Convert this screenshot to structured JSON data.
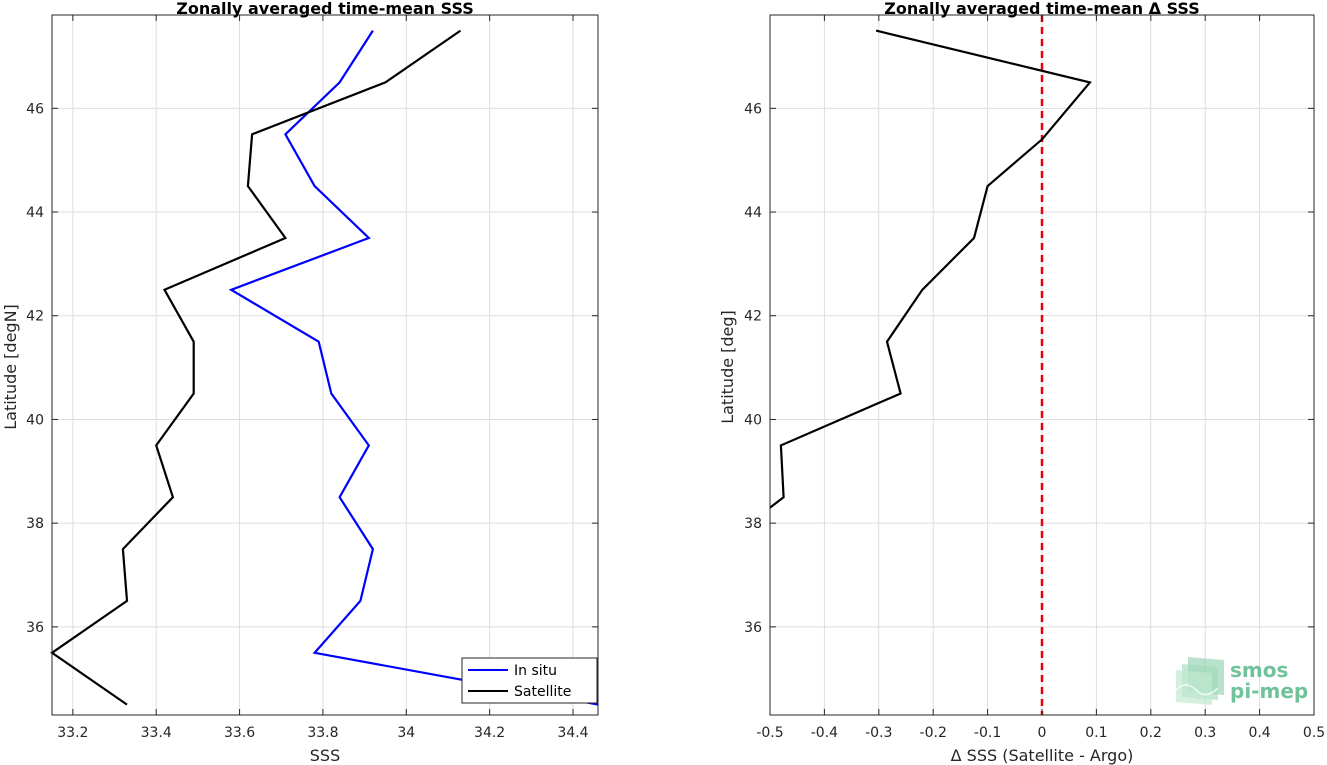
{
  "chart_data": [
    {
      "type": "line",
      "title": "Zonally averaged time-mean SSS",
      "xlabel": "SSS",
      "ylabel": "Latitude [degN]",
      "xlim": [
        33.15,
        34.46
      ],
      "ylim": [
        34.3,
        47.8
      ],
      "xticks": [
        33.2,
        33.4,
        33.6,
        33.8,
        34,
        34.2,
        34.4
      ],
      "xtick_labels": [
        "33.2",
        "33.4",
        "33.6",
        "33.8",
        "34",
        "34.2",
        "34.4"
      ],
      "yticks": [
        36,
        38,
        40,
        42,
        44,
        46
      ],
      "ytick_labels": [
        "36",
        "38",
        "40",
        "42",
        "44",
        "46"
      ],
      "grid": true,
      "legend": "bottom-right",
      "series": [
        {
          "name": "In situ",
          "color": "#0000ff",
          "x": [
            33.92,
            33.84,
            33.71,
            33.78,
            33.91,
            33.58,
            33.79,
            33.82,
            33.91,
            33.84,
            33.92,
            33.89,
            33.78,
            34.46
          ],
          "y": [
            47.5,
            46.5,
            45.5,
            44.5,
            43.5,
            42.5,
            41.5,
            40.5,
            39.5,
            38.5,
            37.5,
            36.5,
            35.5,
            34.5
          ]
        },
        {
          "name": "Satellite",
          "color": "#000000",
          "x": [
            34.13,
            33.95,
            33.63,
            33.62,
            33.71,
            33.42,
            33.49,
            33.49,
            33.4,
            33.44,
            33.32,
            33.33,
            33.15,
            33.33
          ],
          "y": [
            47.5,
            46.5,
            45.5,
            44.5,
            43.5,
            42.5,
            41.5,
            40.5,
            39.5,
            38.5,
            37.5,
            36.5,
            35.5,
            34.5
          ]
        }
      ]
    },
    {
      "type": "line",
      "title": "Zonally averaged time-mean Δ SSS",
      "xlabel": "Δ SSS (Satellite - Argo)",
      "ylabel": "Latitude [deg]",
      "xlim": [
        -0.5,
        0.5
      ],
      "ylim": [
        34.3,
        47.8
      ],
      "xticks": [
        -0.5,
        -0.4,
        -0.3,
        -0.2,
        -0.1,
        0,
        0.1,
        0.2,
        0.3,
        0.4,
        0.5
      ],
      "xtick_labels": [
        "-0.5",
        "-0.4",
        "-0.3",
        "-0.2",
        "-0.1",
        "0",
        "0.1",
        "0.2",
        "0.3",
        "0.4",
        "0.5"
      ],
      "yticks": [
        36,
        38,
        40,
        42,
        44,
        46
      ],
      "ytick_labels": [
        "36",
        "38",
        "40",
        "42",
        "44",
        "46"
      ],
      "grid": true,
      "series": [
        {
          "color": "#000000",
          "x": [
            -0.305,
            0.088,
            0.0,
            -0.1,
            -0.125,
            -0.22,
            -0.285,
            -0.26,
            -0.48,
            -0.475,
            -0.5
          ],
          "y": [
            47.5,
            46.5,
            45.4,
            44.5,
            43.5,
            42.5,
            41.5,
            40.5,
            39.5,
            38.5,
            38.3
          ]
        }
      ],
      "reference_line": {
        "x": 0,
        "color": "#e8000b",
        "style": "dashed"
      }
    }
  ],
  "logo": {
    "line1": "smos",
    "line2": "pi-mep",
    "color": "#6fc29a"
  }
}
